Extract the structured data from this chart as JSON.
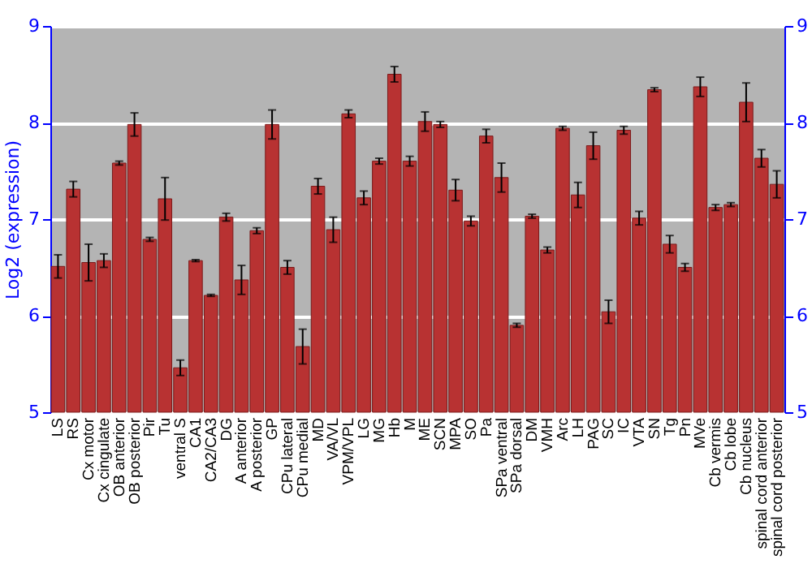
{
  "chart_data": {
    "type": "bar",
    "ylabel": "Log2 (expression)",
    "categories": [
      "LS",
      "RS",
      "Cx motor",
      "Cx cingulate",
      "OB anterior",
      "OB posterior",
      "Pir",
      "Tu",
      "ventral S",
      "CA1",
      "CA2/CA3",
      "DG",
      "A anterior",
      "A posterior",
      "GP",
      "CPu lateral",
      "CPu medial",
      "MD",
      "VA/VL",
      "VPM/VPL",
      "LG",
      "MG",
      "Hb",
      "M",
      "ME",
      "SCN",
      "MPA",
      "SO",
      "Pa",
      "SPa ventral",
      "SPa dorsal",
      "DM",
      "VMH",
      "Arc",
      "LH",
      "PAG",
      "SC",
      "IC",
      "VTA",
      "SN",
      "Tg",
      "Pn",
      "MVe",
      "Cb vermis",
      "Cb lobe",
      "Cb nucleus",
      "spinal cord anterior",
      "spinal cord posterior"
    ],
    "values": [
      6.51,
      7.31,
      6.55,
      6.57,
      7.58,
      7.98,
      6.79,
      7.21,
      5.46,
      6.57,
      6.21,
      7.02,
      6.37,
      6.88,
      7.98,
      6.5,
      5.68,
      7.34,
      6.89,
      8.09,
      7.22,
      7.6,
      8.5,
      7.6,
      8.01,
      7.98,
      7.3,
      6.98,
      7.86,
      7.43,
      5.9,
      7.03,
      6.68,
      7.94,
      7.25,
      7.76,
      6.04,
      7.92,
      7.01,
      8.34,
      6.74,
      6.5,
      8.37,
      7.12,
      7.15,
      8.21,
      7.63,
      7.36
    ],
    "errors": [
      0.12,
      0.08,
      0.19,
      0.07,
      0.02,
      0.12,
      0.02,
      0.22,
      0.08,
      0.01,
      0.01,
      0.04,
      0.15,
      0.03,
      0.15,
      0.07,
      0.18,
      0.08,
      0.13,
      0.04,
      0.07,
      0.03,
      0.08,
      0.05,
      0.1,
      0.03,
      0.11,
      0.05,
      0.07,
      0.15,
      0.02,
      0.02,
      0.03,
      0.02,
      0.13,
      0.14,
      0.12,
      0.04,
      0.07,
      0.02,
      0.09,
      0.04,
      0.1,
      0.03,
      0.02,
      0.2,
      0.09,
      0.14
    ],
    "color": "#b83232",
    "ylim": [
      5,
      9
    ],
    "yticks": [
      5,
      6,
      7,
      8,
      9
    ],
    "y2lim": [
      5,
      9
    ],
    "y2ticks": [
      5,
      6,
      7,
      8,
      9
    ],
    "grid": "y"
  }
}
